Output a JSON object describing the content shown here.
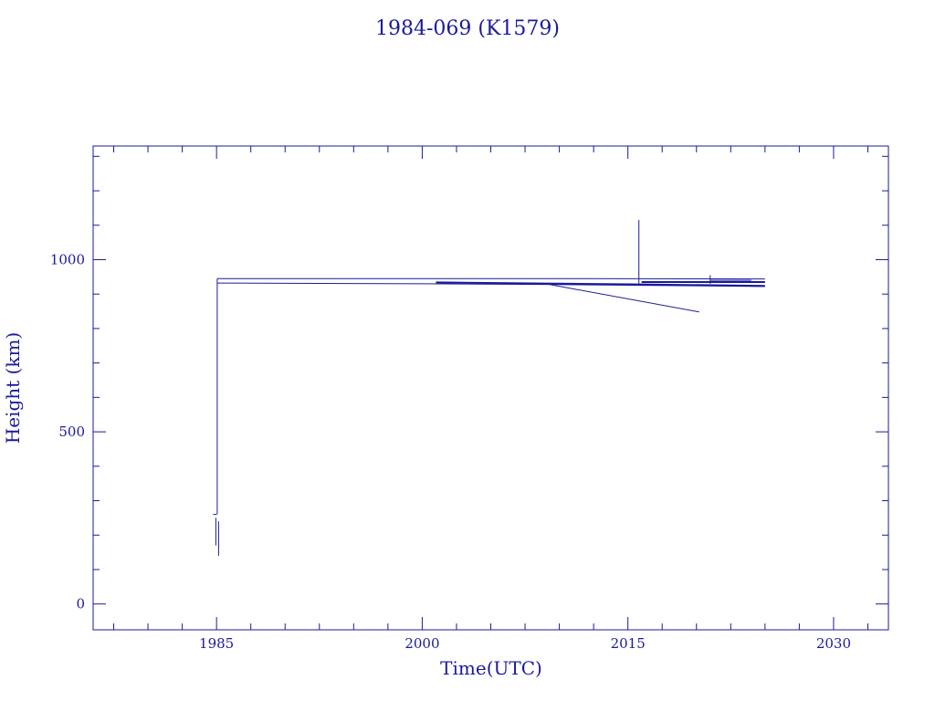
{
  "colors": {
    "ink": "#1a1a9a",
    "background": "#ffffff"
  },
  "chart_data": {
    "type": "line",
    "title": "1984-069 (K1579)",
    "xlabel": "Time(UTC)",
    "ylabel": "Height (km)",
    "xlim": [
      1976,
      2034
    ],
    "ylim": [
      -75,
      1330
    ],
    "x_ticks": [
      1985,
      2000,
      2015,
      2030
    ],
    "x_tick_labels": [
      "1985",
      "2000",
      "2015",
      "2030"
    ],
    "y_ticks": [
      0,
      500,
      1000
    ],
    "y_tick_labels": [
      "0",
      "500",
      "1000"
    ],
    "x_minor_step": 2.5,
    "y_minor_step": 100,
    "grid": false,
    "legend": "none",
    "series": [
      {
        "x": [
          1984.75,
          1985.0
        ],
        "y": [
          260,
          260
        ]
      },
      {
        "x": [
          1984.95,
          1984.95
        ],
        "y": [
          170,
          250
        ]
      },
      {
        "x": [
          1985.15,
          1985.15
        ],
        "y": [
          140,
          240
        ]
      },
      {
        "x": [
          1985.05,
          1985.05
        ],
        "y": [
          260,
          945
        ]
      },
      {
        "x": [
          1985.05,
          2012.0,
          2025.0
        ],
        "y": [
          945,
          945,
          944
        ]
      },
      {
        "x": [
          1985.05,
          2000.0,
          2009.0,
          2025.0
        ],
        "y": [
          932,
          930,
          928,
          922
        ]
      },
      {
        "x": [
          2001.0,
          2008.0,
          2016.0,
          2025.0
        ],
        "y": [
          934,
          931,
          928,
          924
        ]
      },
      {
        "x": [
          2016.0,
          2025.0
        ],
        "y": [
          935,
          935
        ]
      },
      {
        "x": [
          2009.0,
          2020.2
        ],
        "y": [
          930,
          848
        ]
      },
      {
        "x": [
          2015.8,
          2015.8
        ],
        "y": [
          930,
          1115
        ]
      },
      {
        "x": [
          2021.0,
          2021.0
        ],
        "y": [
          930,
          955
        ]
      },
      {
        "x": [
          2021.0,
          2024.0
        ],
        "y": [
          940,
          940
        ]
      }
    ]
  }
}
